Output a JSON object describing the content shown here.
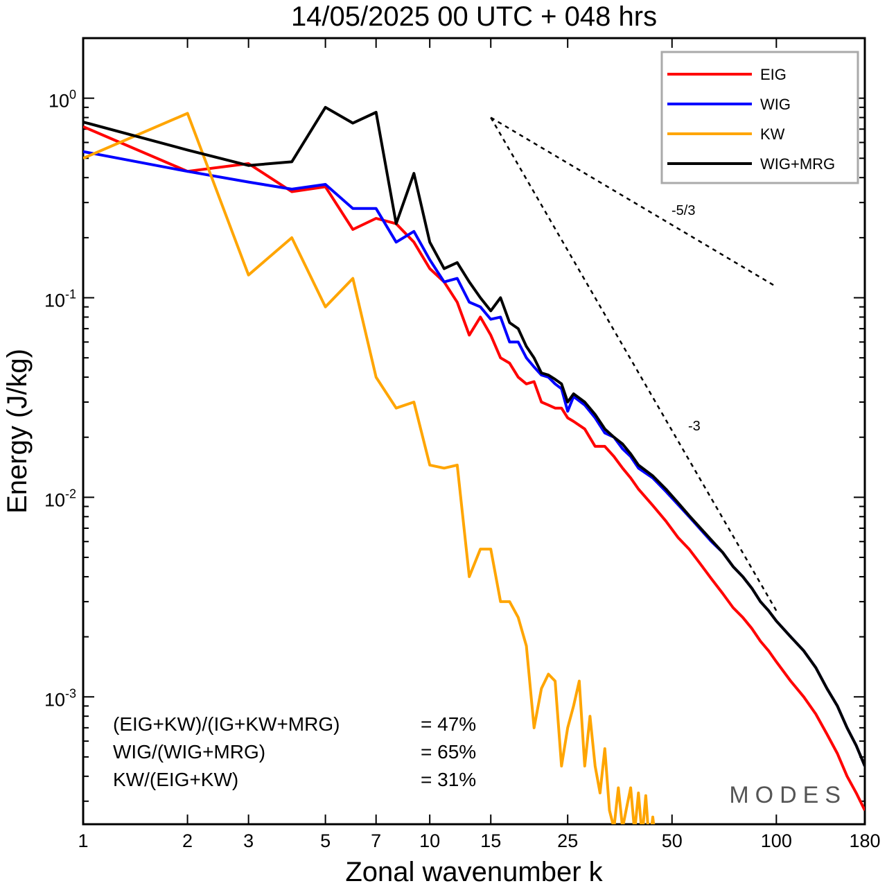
{
  "chart_data": {
    "type": "line",
    "title": "14/05/2025  00 UTC  + 048 hrs",
    "xlabel": "Zonal wavenumber k",
    "ylabel": "Energy (J/kg)",
    "xscale": "log",
    "yscale": "log",
    "xlim": [
      1,
      180
    ],
    "ylim": [
      0.00023,
      2.0
    ],
    "xticks": [
      1,
      2,
      3,
      5,
      7,
      10,
      15,
      25,
      50,
      100,
      180
    ],
    "xtick_labels": [
      "1",
      "2",
      "3",
      "5",
      "7",
      "10",
      "15",
      "25",
      "50",
      "100",
      "180"
    ],
    "yticks": [
      {
        "value": 1.0,
        "base": "10",
        "exp": "0"
      },
      {
        "value": 0.1,
        "base": "10",
        "exp": "-1"
      },
      {
        "value": 0.01,
        "base": "10",
        "exp": "-2"
      },
      {
        "value": 0.001,
        "base": "10",
        "exp": "-3"
      }
    ],
    "grid": false,
    "legend_position": "top-right",
    "series": [
      {
        "name": "EIG",
        "color": "#ff0000",
        "points": [
          [
            1,
            0.72
          ],
          [
            2,
            0.43
          ],
          [
            3,
            0.47
          ],
          [
            4,
            0.34
          ],
          [
            5,
            0.36
          ],
          [
            6,
            0.22
          ],
          [
            7,
            0.25
          ],
          [
            8,
            0.235
          ],
          [
            9,
            0.19
          ],
          [
            10,
            0.14
          ],
          [
            11,
            0.12
          ],
          [
            12,
            0.095
          ],
          [
            13,
            0.065
          ],
          [
            14,
            0.08
          ],
          [
            15,
            0.065
          ],
          [
            16,
            0.05
          ],
          [
            17,
            0.047
          ],
          [
            18,
            0.04
          ],
          [
            19,
            0.037
          ],
          [
            20,
            0.038
          ],
          [
            21,
            0.03
          ],
          [
            22,
            0.029
          ],
          [
            23,
            0.028
          ],
          [
            24,
            0.028
          ],
          [
            25,
            0.025
          ],
          [
            26,
            0.024
          ],
          [
            28,
            0.022
          ],
          [
            30,
            0.018
          ],
          [
            32,
            0.018
          ],
          [
            34,
            0.016
          ],
          [
            36,
            0.014
          ],
          [
            38,
            0.0125
          ],
          [
            40,
            0.011
          ],
          [
            44,
            0.0091
          ],
          [
            48,
            0.0076
          ],
          [
            52,
            0.0063
          ],
          [
            56,
            0.0055
          ],
          [
            60,
            0.0047
          ],
          [
            65,
            0.0039
          ],
          [
            70,
            0.0033
          ],
          [
            75,
            0.0028
          ],
          [
            80,
            0.0025
          ],
          [
            85,
            0.0022
          ],
          [
            90,
            0.0019
          ],
          [
            95,
            0.0017
          ],
          [
            100,
            0.0015
          ],
          [
            110,
            0.0012
          ],
          [
            120,
            0.001
          ],
          [
            130,
            0.00082
          ],
          [
            140,
            0.00065
          ],
          [
            150,
            0.00052
          ],
          [
            160,
            0.0004
          ],
          [
            170,
            0.00033
          ],
          [
            180,
            0.00027
          ]
        ]
      },
      {
        "name": "WIG",
        "color": "#0000ff",
        "points": [
          [
            1,
            0.54
          ],
          [
            2,
            0.43
          ],
          [
            3,
            0.38
          ],
          [
            4,
            0.35
          ],
          [
            5,
            0.37
          ],
          [
            6,
            0.28
          ],
          [
            7,
            0.28
          ],
          [
            8,
            0.19
          ],
          [
            9,
            0.215
          ],
          [
            10,
            0.155
          ],
          [
            11,
            0.12
          ],
          [
            12,
            0.125
          ],
          [
            13,
            0.095
          ],
          [
            14,
            0.09
          ],
          [
            15,
            0.078
          ],
          [
            16,
            0.08
          ],
          [
            17,
            0.06
          ],
          [
            18,
            0.06
          ],
          [
            19,
            0.05
          ],
          [
            20,
            0.045
          ],
          [
            21,
            0.041
          ],
          [
            22,
            0.04
          ],
          [
            23,
            0.037
          ],
          [
            24,
            0.035
          ],
          [
            25,
            0.027
          ],
          [
            26,
            0.032
          ],
          [
            28,
            0.029
          ],
          [
            30,
            0.025
          ],
          [
            32,
            0.021
          ],
          [
            34,
            0.02
          ],
          [
            36,
            0.0175
          ],
          [
            38,
            0.016
          ],
          [
            40,
            0.014
          ],
          [
            44,
            0.0125
          ],
          [
            48,
            0.0107
          ],
          [
            52,
            0.0092
          ],
          [
            56,
            0.008
          ],
          [
            60,
            0.007
          ],
          [
            65,
            0.006
          ],
          [
            70,
            0.0053
          ],
          [
            75,
            0.0045
          ],
          [
            80,
            0.004
          ],
          [
            85,
            0.0035
          ],
          [
            90,
            0.003
          ],
          [
            95,
            0.0027
          ],
          [
            100,
            0.0024
          ],
          [
            110,
            0.002
          ],
          [
            120,
            0.0017
          ],
          [
            130,
            0.0014
          ],
          [
            140,
            0.0011
          ],
          [
            150,
            0.0009
          ],
          [
            160,
            0.0007
          ],
          [
            170,
            0.00057
          ],
          [
            180,
            0.00045
          ]
        ]
      },
      {
        "name": "KW",
        "color": "#ffa500",
        "points": [
          [
            1,
            0.5
          ],
          [
            2,
            0.84
          ],
          [
            3,
            0.13
          ],
          [
            4,
            0.2
          ],
          [
            5,
            0.09
          ],
          [
            6,
            0.125
          ],
          [
            7,
            0.04
          ],
          [
            8,
            0.028
          ],
          [
            9,
            0.03
          ],
          [
            10,
            0.0145
          ],
          [
            11,
            0.014
          ],
          [
            12,
            0.0145
          ],
          [
            13,
            0.004
          ],
          [
            14,
            0.0055
          ],
          [
            15,
            0.0055
          ],
          [
            16,
            0.003
          ],
          [
            17,
            0.003
          ],
          [
            18,
            0.0025
          ],
          [
            19,
            0.0018
          ],
          [
            20,
            0.0007
          ],
          [
            21,
            0.0011
          ],
          [
            22,
            0.0013
          ],
          [
            23,
            0.0012
          ],
          [
            24,
            0.00045
          ],
          [
            25,
            0.0007
          ],
          [
            26,
            0.0009
          ],
          [
            27,
            0.0012
          ],
          [
            28,
            0.00045
          ],
          [
            29,
            0.0008
          ],
          [
            30,
            0.00045
          ],
          [
            31,
            0.00033
          ],
          [
            32,
            0.00055
          ],
          [
            33,
            0.00027
          ],
          [
            34,
            0.00022
          ],
          [
            35,
            0.00035
          ],
          [
            36,
            0.00022
          ],
          [
            37,
            0.00028
          ],
          [
            38,
            0.00035
          ],
          [
            39,
            0.00021
          ],
          [
            40,
            0.00033
          ],
          [
            41,
            0.0002
          ],
          [
            42,
            0.00032
          ],
          [
            43,
            0.00018
          ],
          [
            44,
            0.00025
          ],
          [
            45,
            0.00018
          ],
          [
            46,
            0.00022
          ]
        ]
      },
      {
        "name": "WIG+MRG",
        "color": "#000000",
        "points": [
          [
            1,
            0.76
          ],
          [
            2,
            0.55
          ],
          [
            3,
            0.46
          ],
          [
            4,
            0.48
          ],
          [
            5,
            0.9
          ],
          [
            6,
            0.75
          ],
          [
            7,
            0.85
          ],
          [
            8,
            0.235
          ],
          [
            9,
            0.42
          ],
          [
            10,
            0.19
          ],
          [
            11,
            0.14
          ],
          [
            12,
            0.15
          ],
          [
            13,
            0.12
          ],
          [
            14,
            0.1
          ],
          [
            15,
            0.086
          ],
          [
            16,
            0.1
          ],
          [
            17,
            0.075
          ],
          [
            18,
            0.07
          ],
          [
            19,
            0.057
          ],
          [
            20,
            0.05
          ],
          [
            21,
            0.042
          ],
          [
            22,
            0.041
          ],
          [
            23,
            0.039
          ],
          [
            24,
            0.037
          ],
          [
            25,
            0.03
          ],
          [
            26,
            0.033
          ],
          [
            28,
            0.03
          ],
          [
            30,
            0.026
          ],
          [
            32,
            0.022
          ],
          [
            34,
            0.02
          ],
          [
            36,
            0.0185
          ],
          [
            38,
            0.0165
          ],
          [
            40,
            0.0145
          ],
          [
            44,
            0.0128
          ],
          [
            48,
            0.011
          ],
          [
            52,
            0.0094
          ],
          [
            56,
            0.0081
          ],
          [
            60,
            0.0071
          ],
          [
            65,
            0.0061
          ],
          [
            70,
            0.0053
          ],
          [
            75,
            0.0045
          ],
          [
            80,
            0.004
          ],
          [
            85,
            0.0035
          ],
          [
            90,
            0.003
          ],
          [
            95,
            0.0027
          ],
          [
            100,
            0.0024
          ],
          [
            110,
            0.002
          ],
          [
            120,
            0.0017
          ],
          [
            130,
            0.0014
          ],
          [
            140,
            0.0011
          ],
          [
            150,
            0.0009
          ],
          [
            160,
            0.0007
          ],
          [
            170,
            0.00057
          ],
          [
            180,
            0.00045
          ]
        ]
      }
    ],
    "reference_lines": [
      {
        "label": "-5/3",
        "slope": -1.6667,
        "points": [
          [
            15,
            0.8
          ],
          [
            100,
            0.1135
          ]
        ]
      },
      {
        "label": "-3",
        "slope": -3,
        "points": [
          [
            15,
            0.8
          ],
          [
            100,
            0.0027
          ]
        ]
      }
    ],
    "ratios": [
      {
        "label": "(EIG+KW)/(IG+KW+MRG)",
        "value": "= 47%"
      },
      {
        "label": "WIG/(WIG+MRG)",
        "value": "= 65%"
      },
      {
        "label": "KW/(EIG+KW)",
        "value": "= 31%"
      }
    ],
    "watermark": "MODES"
  }
}
